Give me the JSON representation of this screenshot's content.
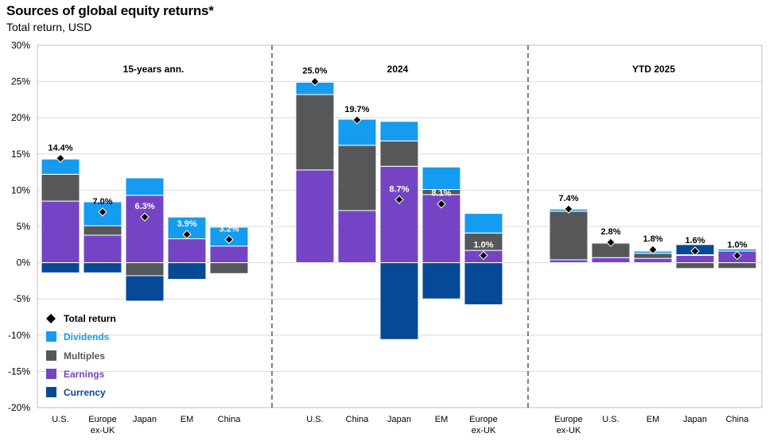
{
  "title": "Sources of global equity returns*",
  "subtitle": "Total return, USD",
  "chart_data": {
    "type": "bar",
    "stacked": true,
    "ylim": [
      -20,
      30
    ],
    "yticks": [
      -20,
      -15,
      -10,
      -5,
      0,
      5,
      10,
      15,
      20,
      25,
      30
    ],
    "ytick_labels": [
      "-20%",
      "-15%",
      "-10%",
      "-5%",
      "0%",
      "5%",
      "10%",
      "15%",
      "20%",
      "25%",
      "30%"
    ],
    "legend_position": "bottom-left",
    "components": [
      {
        "key": "dividends",
        "name": "Dividends",
        "color": "#159BF0",
        "label_color": "#159BF0"
      },
      {
        "key": "multiples",
        "name": "Multiples",
        "color": "#555759",
        "label_color": "#555759"
      },
      {
        "key": "earnings",
        "name": "Earnings",
        "color": "#7544C4",
        "label_color": "#7544C4"
      },
      {
        "key": "currency",
        "name": "Currency",
        "color": "#064996",
        "label_color": "#064996"
      }
    ],
    "total_legend": "Total return",
    "groups": [
      {
        "label": "15-years ann.",
        "bars": [
          {
            "category": "U.S.",
            "earnings": 8.5,
            "multiples": 3.7,
            "dividends": 2.1,
            "currency": -1.4,
            "total": 14.4,
            "total_label": "14.4%"
          },
          {
            "category": "Europe ex-UK",
            "earnings": 3.8,
            "multiples": 1.3,
            "dividends": 3.3,
            "currency": -1.4,
            "total": 7.0,
            "total_label": "7.0%"
          },
          {
            "category": "Japan",
            "earnings": 9.3,
            "multiples": -1.8,
            "dividends": 2.4,
            "currency": -3.5,
            "total": 6.3,
            "total_label": "6.3%"
          },
          {
            "category": "EM",
            "earnings": 3.3,
            "multiples": 0.0,
            "dividends": 3.0,
            "currency": -2.3,
            "total": 3.9,
            "total_label": "3.9%"
          },
          {
            "category": "China",
            "earnings": 2.3,
            "multiples": -1.5,
            "dividends": 2.6,
            "currency": 0.0,
            "total": 3.2,
            "total_label": "3.2%"
          }
        ]
      },
      {
        "label": "2024",
        "bars": [
          {
            "category": "U.S.",
            "earnings": 12.8,
            "multiples": 10.4,
            "dividends": 1.7,
            "currency": 0.0,
            "total": 25.0,
            "total_label": "25.0%"
          },
          {
            "category": "China",
            "earnings": 7.2,
            "multiples": 9.0,
            "dividends": 3.6,
            "currency": 0.0,
            "total": 19.7,
            "total_label": "19.7%"
          },
          {
            "category": "Japan",
            "earnings": 13.3,
            "multiples": 3.5,
            "dividends": 2.7,
            "currency": -10.6,
            "total": 8.7,
            "total_label": "8.7%"
          },
          {
            "category": "EM",
            "earnings": 9.4,
            "multiples": 0.7,
            "dividends": 3.1,
            "currency": -5.0,
            "total": 8.1,
            "total_label": "8.1%"
          },
          {
            "category": "Europe ex-UK",
            "earnings": 1.7,
            "multiples": 2.4,
            "dividends": 2.7,
            "currency": -5.8,
            "total": 1.0,
            "total_label": "1.0%"
          }
        ]
      },
      {
        "label": "YTD 2025",
        "bars": [
          {
            "category": "Europe ex-UK",
            "earnings": 0.4,
            "multiples": 6.7,
            "dividends": 0.3,
            "currency": 0.0,
            "total": 7.4,
            "total_label": "7.4%"
          },
          {
            "category": "U.S.",
            "earnings": 0.7,
            "multiples": 2.0,
            "dividends": 0.1,
            "currency": 0.0,
            "total": 2.8,
            "total_label": "2.8%"
          },
          {
            "category": "EM",
            "earnings": 0.6,
            "multiples": 0.7,
            "dividends": 0.3,
            "currency": 0.0,
            "total": 1.8,
            "total_label": "1.8%"
          },
          {
            "category": "Japan",
            "earnings": 1.0,
            "multiples": -0.8,
            "dividends": 0.1,
            "currency": 1.4,
            "total": 1.6,
            "total_label": "1.6%"
          },
          {
            "category": "China",
            "earnings": 1.6,
            "multiples": -0.8,
            "dividends": 0.3,
            "currency": -0.1,
            "total": 1.0,
            "total_label": "1.0%"
          }
        ]
      }
    ]
  }
}
